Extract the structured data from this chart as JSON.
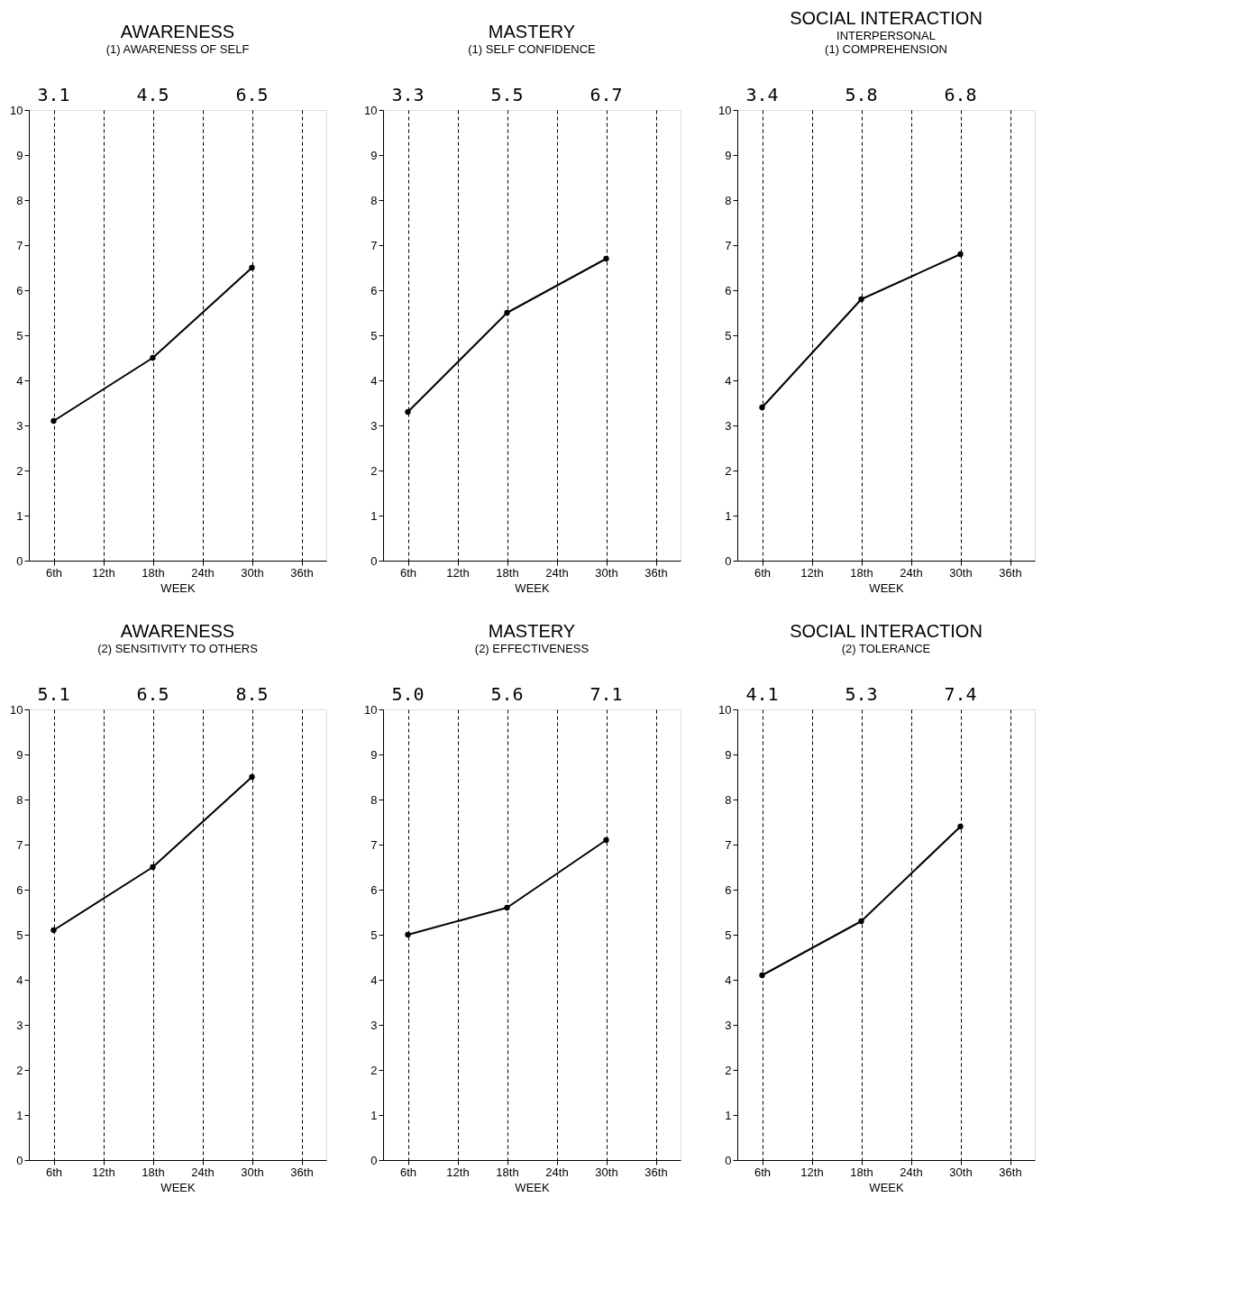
{
  "chart_data": [
    {
      "type": "line",
      "title": "AWARENESS",
      "subtitle": "(1) AWARENESS OF SELF",
      "xlabel": "WEEK",
      "x": [
        6,
        18,
        30
      ],
      "values": [
        3.1,
        4.5,
        6.5
      ],
      "annotations": [
        "3.1",
        "4.5",
        "6.5"
      ],
      "color": "#000000",
      "marker": "circle",
      "line_style": "solid",
      "grid": "x",
      "xlim": [
        3,
        39
      ],
      "xticks": [
        {
          "value": 6,
          "label": "6th"
        },
        {
          "value": 12,
          "label": "12th"
        },
        {
          "value": 18,
          "label": "18th"
        },
        {
          "value": 24,
          "label": "24th"
        },
        {
          "value": 30,
          "label": "30th"
        },
        {
          "value": 36,
          "label": "36th"
        }
      ],
      "ylim": [
        0,
        10
      ],
      "yticks": [
        0,
        1,
        2,
        3,
        4,
        5,
        6,
        7,
        8,
        9,
        10
      ]
    },
    {
      "type": "line",
      "title": "MASTERY",
      "subtitle": "(1) SELF CONFIDENCE",
      "xlabel": "WEEK",
      "x": [
        6,
        18,
        30
      ],
      "values": [
        3.3,
        5.5,
        6.7
      ],
      "annotations": [
        "3.3",
        "5.5",
        "6.7"
      ],
      "color": "#000000",
      "marker": "circle",
      "line_style": "solid",
      "grid": "x",
      "xlim": [
        3,
        39
      ],
      "xticks": [
        {
          "value": 6,
          "label": "6th"
        },
        {
          "value": 12,
          "label": "12th"
        },
        {
          "value": 18,
          "label": "18th"
        },
        {
          "value": 24,
          "label": "24th"
        },
        {
          "value": 30,
          "label": "30th"
        },
        {
          "value": 36,
          "label": "36th"
        }
      ],
      "ylim": [
        0,
        10
      ],
      "yticks": [
        0,
        1,
        2,
        3,
        4,
        5,
        6,
        7,
        8,
        9,
        10
      ]
    },
    {
      "type": "line",
      "title": "SOCIAL INTERACTION",
      "subtitle": "INTERPERSONAL\n(1) COMPREHENSION",
      "xlabel": "WEEK",
      "x": [
        6,
        18,
        30
      ],
      "values": [
        3.4,
        5.8,
        6.8
      ],
      "annotations": [
        "3.4",
        "5.8",
        "6.8"
      ],
      "color": "#000000",
      "marker": "circle",
      "line_style": "solid",
      "grid": "x",
      "xlim": [
        3,
        39
      ],
      "xticks": [
        {
          "value": 6,
          "label": "6th"
        },
        {
          "value": 12,
          "label": "12th"
        },
        {
          "value": 18,
          "label": "18th"
        },
        {
          "value": 24,
          "label": "24th"
        },
        {
          "value": 30,
          "label": "30th"
        },
        {
          "value": 36,
          "label": "36th"
        }
      ],
      "ylim": [
        0,
        10
      ],
      "yticks": [
        0,
        1,
        2,
        3,
        4,
        5,
        6,
        7,
        8,
        9,
        10
      ]
    },
    {
      "type": "line",
      "title": "AWARENESS",
      "subtitle": "(2) SENSITIVITY TO OTHERS",
      "xlabel": "WEEK",
      "x": [
        6,
        18,
        30
      ],
      "values": [
        5.1,
        6.5,
        8.5
      ],
      "annotations": [
        "5.1",
        "6.5",
        "8.5"
      ],
      "color": "#000000",
      "marker": "circle",
      "line_style": "solid",
      "grid": "x",
      "xlim": [
        3,
        39
      ],
      "xticks": [
        {
          "value": 6,
          "label": "6th"
        },
        {
          "value": 12,
          "label": "12th"
        },
        {
          "value": 18,
          "label": "18th"
        },
        {
          "value": 24,
          "label": "24th"
        },
        {
          "value": 30,
          "label": "30th"
        },
        {
          "value": 36,
          "label": "36th"
        }
      ],
      "ylim": [
        0,
        10
      ],
      "yticks": [
        0,
        1,
        2,
        3,
        4,
        5,
        6,
        7,
        8,
        9,
        10
      ]
    },
    {
      "type": "line",
      "title": "MASTERY",
      "subtitle": "(2) EFFECTIVENESS",
      "xlabel": "WEEK",
      "x": [
        6,
        18,
        30
      ],
      "values": [
        5.0,
        5.6,
        7.1
      ],
      "annotations": [
        "5.0",
        "5.6",
        "7.1"
      ],
      "color": "#000000",
      "marker": "circle",
      "line_style": "solid",
      "grid": "x",
      "xlim": [
        3,
        39
      ],
      "xticks": [
        {
          "value": 6,
          "label": "6th"
        },
        {
          "value": 12,
          "label": "12th"
        },
        {
          "value": 18,
          "label": "18th"
        },
        {
          "value": 24,
          "label": "24th"
        },
        {
          "value": 30,
          "label": "30th"
        },
        {
          "value": 36,
          "label": "36th"
        }
      ],
      "ylim": [
        0,
        10
      ],
      "yticks": [
        0,
        1,
        2,
        3,
        4,
        5,
        6,
        7,
        8,
        9,
        10
      ]
    },
    {
      "type": "line",
      "title": "SOCIAL INTERACTION",
      "subtitle": "(2) TOLERANCE",
      "xlabel": "WEEK",
      "x": [
        6,
        18,
        30
      ],
      "values": [
        4.1,
        5.3,
        7.4
      ],
      "annotations": [
        "4.1",
        "5.3",
        "7.4"
      ],
      "color": "#000000",
      "marker": "circle",
      "line_style": "solid",
      "grid": "x",
      "xlim": [
        3,
        39
      ],
      "xticks": [
        {
          "value": 6,
          "label": "6th"
        },
        {
          "value": 12,
          "label": "12th"
        },
        {
          "value": 18,
          "label": "18th"
        },
        {
          "value": 24,
          "label": "24th"
        },
        {
          "value": 30,
          "label": "30th"
        },
        {
          "value": 36,
          "label": "36th"
        }
      ],
      "ylim": [
        0,
        10
      ],
      "yticks": [
        0,
        1,
        2,
        3,
        4,
        5,
        6,
        7,
        8,
        9,
        10
      ]
    }
  ]
}
